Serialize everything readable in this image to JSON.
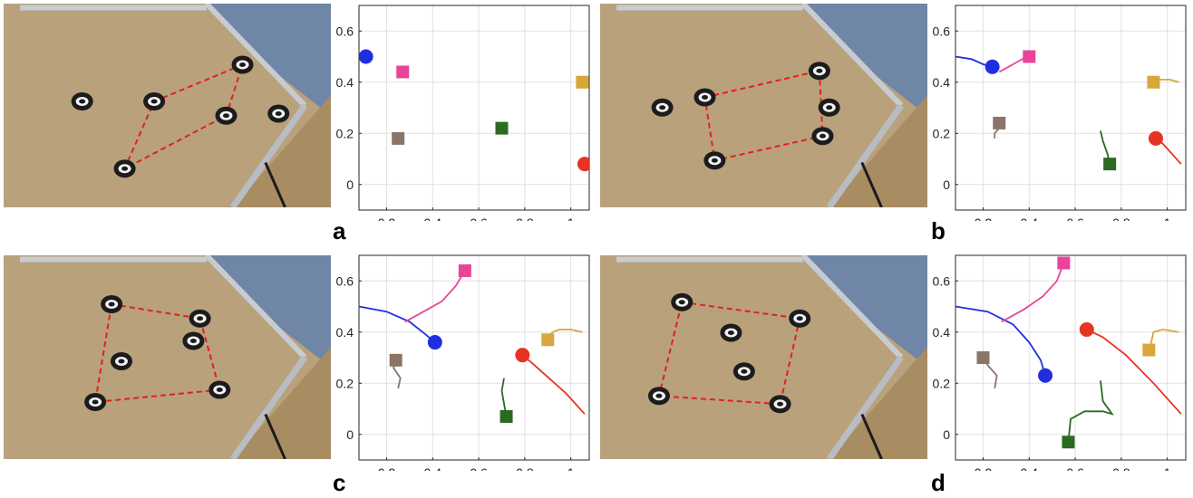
{
  "panels": [
    {
      "label": "a"
    },
    {
      "label": "b"
    },
    {
      "label": "c"
    },
    {
      "label": "d"
    }
  ],
  "photos": [
    {
      "description": "overhead photo of robot arena",
      "robots": [
        [
          0.24,
          0.48
        ],
        [
          0.46,
          0.48
        ],
        [
          0.73,
          0.3
        ],
        [
          0.68,
          0.55
        ],
        [
          0.37,
          0.81
        ],
        [
          0.84,
          0.54
        ]
      ],
      "formation": [
        [
          0.46,
          0.48
        ],
        [
          0.73,
          0.3
        ],
        [
          0.68,
          0.55
        ],
        [
          0.37,
          0.81
        ]
      ]
    },
    {
      "description": "overhead photo of robot arena",
      "robots": [
        [
          0.19,
          0.51
        ],
        [
          0.32,
          0.46
        ],
        [
          0.67,
          0.33
        ],
        [
          0.7,
          0.51
        ],
        [
          0.68,
          0.65
        ],
        [
          0.35,
          0.77
        ]
      ],
      "formation": [
        [
          0.32,
          0.46
        ],
        [
          0.67,
          0.33
        ],
        [
          0.68,
          0.65
        ],
        [
          0.35,
          0.77
        ]
      ]
    },
    {
      "description": "overhead photo of robot arena",
      "robots": [
        [
          0.33,
          0.24
        ],
        [
          0.6,
          0.31
        ],
        [
          0.58,
          0.42
        ],
        [
          0.36,
          0.52
        ],
        [
          0.28,
          0.72
        ],
        [
          0.66,
          0.66
        ]
      ],
      "formation": [
        [
          0.33,
          0.24
        ],
        [
          0.6,
          0.31
        ],
        [
          0.66,
          0.66
        ],
        [
          0.28,
          0.72
        ]
      ]
    },
    {
      "description": "overhead photo of robot arena",
      "robots": [
        [
          0.25,
          0.23
        ],
        [
          0.61,
          0.31
        ],
        [
          0.4,
          0.38
        ],
        [
          0.44,
          0.57
        ],
        [
          0.18,
          0.69
        ],
        [
          0.55,
          0.73
        ]
      ],
      "formation": [
        [
          0.25,
          0.23
        ],
        [
          0.61,
          0.31
        ],
        [
          0.55,
          0.73
        ],
        [
          0.18,
          0.69
        ]
      ]
    }
  ],
  "chart_data": [
    {
      "type": "scatter",
      "panel": "a",
      "xlim": [
        0.08,
        1.08
      ],
      "ylim": [
        -0.1,
        0.7
      ],
      "xticks": [
        0.2,
        0.4,
        0.6,
        0.8,
        1
      ],
      "yticks": [
        0,
        0.2,
        0.4,
        0.6
      ],
      "xtick_labels": [
        "0.2",
        "0.4",
        "0.6",
        "0.8",
        "1"
      ],
      "ytick_labels": [
        "0",
        "0.2",
        "0.4",
        "0.6"
      ],
      "grid": true,
      "points": [
        {
          "shape": "circle",
          "color": "#1f2fe0",
          "x": 0.11,
          "y": 0.5
        },
        {
          "shape": "circle",
          "color": "#e63322",
          "x": 1.06,
          "y": 0.08
        },
        {
          "shape": "square",
          "color": "#e8449a",
          "x": 0.27,
          "y": 0.44
        },
        {
          "shape": "square",
          "color": "#d8a73a",
          "x": 1.05,
          "y": 0.4
        },
        {
          "shape": "square",
          "color": "#2a6b21",
          "x": 0.7,
          "y": 0.22
        },
        {
          "shape": "square",
          "color": "#8a7669",
          "x": 0.25,
          "y": 0.18
        }
      ],
      "trails": []
    },
    {
      "type": "scatter",
      "panel": "b",
      "xlim": [
        0.08,
        1.08
      ],
      "ylim": [
        -0.1,
        0.7
      ],
      "xticks": [
        0.2,
        0.4,
        0.6,
        0.8,
        1
      ],
      "yticks": [
        0,
        0.2,
        0.4,
        0.6
      ],
      "xtick_labels": [
        "0.2",
        "0.4",
        "0.6",
        "0.8",
        "1"
      ],
      "ytick_labels": [
        "0",
        "0.2",
        "0.4",
        "0.6"
      ],
      "grid": true,
      "points": [
        {
          "shape": "circle",
          "color": "#1f2fe0",
          "x": 0.24,
          "y": 0.46
        },
        {
          "shape": "circle",
          "color": "#e63322",
          "x": 0.95,
          "y": 0.18
        },
        {
          "shape": "square",
          "color": "#e8449a",
          "x": 0.4,
          "y": 0.5
        },
        {
          "shape": "square",
          "color": "#d8a73a",
          "x": 0.94,
          "y": 0.4
        },
        {
          "shape": "square",
          "color": "#2a6b21",
          "x": 0.75,
          "y": 0.08
        },
        {
          "shape": "square",
          "color": "#8a7669",
          "x": 0.27,
          "y": 0.24
        }
      ],
      "trails": [
        {
          "color": "#1f2fe0",
          "path": [
            [
              0.08,
              0.5
            ],
            [
              0.15,
              0.49
            ],
            [
              0.2,
              0.47
            ],
            [
              0.24,
              0.46
            ]
          ]
        },
        {
          "color": "#e8449a",
          "path": [
            [
              0.27,
              0.44
            ],
            [
              0.33,
              0.47
            ],
            [
              0.37,
              0.49
            ],
            [
              0.4,
              0.5
            ]
          ]
        },
        {
          "color": "#e63322",
          "path": [
            [
              1.06,
              0.08
            ],
            [
              1.02,
              0.12
            ],
            [
              0.98,
              0.16
            ],
            [
              0.95,
              0.18
            ]
          ]
        },
        {
          "color": "#d8a73a",
          "path": [
            [
              1.05,
              0.4
            ],
            [
              1.01,
              0.41
            ],
            [
              0.97,
              0.41
            ],
            [
              0.94,
              0.4
            ]
          ]
        },
        {
          "color": "#2a6b21",
          "path": [
            [
              0.71,
              0.21
            ],
            [
              0.72,
              0.17
            ],
            [
              0.74,
              0.12
            ],
            [
              0.75,
              0.08
            ]
          ]
        },
        {
          "color": "#8a7669",
          "path": [
            [
              0.25,
              0.18
            ],
            [
              0.25,
              0.2
            ],
            [
              0.27,
              0.22
            ],
            [
              0.27,
              0.24
            ]
          ]
        }
      ]
    },
    {
      "type": "scatter",
      "panel": "c",
      "xlim": [
        0.08,
        1.08
      ],
      "ylim": [
        -0.1,
        0.7
      ],
      "xticks": [
        0.2,
        0.4,
        0.6,
        0.8,
        1
      ],
      "yticks": [
        0,
        0.2,
        0.4,
        0.6
      ],
      "xtick_labels": [
        "0.2",
        "0.4",
        "0.6",
        "0.8",
        "1"
      ],
      "ytick_labels": [
        "0",
        "0.2",
        "0.4",
        "0.6"
      ],
      "grid": true,
      "points": [
        {
          "shape": "circle",
          "color": "#1f2fe0",
          "x": 0.41,
          "y": 0.36
        },
        {
          "shape": "circle",
          "color": "#e63322",
          "x": 0.79,
          "y": 0.31
        },
        {
          "shape": "square",
          "color": "#e8449a",
          "x": 0.54,
          "y": 0.64
        },
        {
          "shape": "square",
          "color": "#d8a73a",
          "x": 0.9,
          "y": 0.37
        },
        {
          "shape": "square",
          "color": "#2a6b21",
          "x": 0.72,
          "y": 0.07
        },
        {
          "shape": "square",
          "color": "#8a7669",
          "x": 0.24,
          "y": 0.29
        }
      ],
      "trails": [
        {
          "color": "#1f2fe0",
          "path": [
            [
              0.08,
              0.5
            ],
            [
              0.2,
              0.48
            ],
            [
              0.3,
              0.44
            ],
            [
              0.37,
              0.39
            ],
            [
              0.41,
              0.36
            ]
          ]
        },
        {
          "color": "#e8449a",
          "path": [
            [
              0.28,
              0.44
            ],
            [
              0.36,
              0.48
            ],
            [
              0.44,
              0.52
            ],
            [
              0.5,
              0.58
            ],
            [
              0.54,
              0.64
            ]
          ]
        },
        {
          "color": "#e63322",
          "path": [
            [
              1.06,
              0.08
            ],
            [
              0.98,
              0.16
            ],
            [
              0.88,
              0.24
            ],
            [
              0.83,
              0.28
            ],
            [
              0.79,
              0.31
            ]
          ]
        },
        {
          "color": "#d8a73a",
          "path": [
            [
              1.05,
              0.4
            ],
            [
              1.0,
              0.41
            ],
            [
              0.95,
              0.41
            ],
            [
              0.92,
              0.4
            ],
            [
              0.9,
              0.37
            ]
          ]
        },
        {
          "color": "#2a6b21",
          "path": [
            [
              0.71,
              0.22
            ],
            [
              0.7,
              0.17
            ],
            [
              0.71,
              0.12
            ],
            [
              0.72,
              0.07
            ]
          ]
        },
        {
          "color": "#8a7669",
          "path": [
            [
              0.25,
              0.18
            ],
            [
              0.26,
              0.22
            ],
            [
              0.23,
              0.26
            ],
            [
              0.24,
              0.29
            ]
          ]
        }
      ]
    },
    {
      "type": "scatter",
      "panel": "d",
      "xlim": [
        0.08,
        1.08
      ],
      "ylim": [
        -0.1,
        0.7
      ],
      "xticks": [
        0.2,
        0.4,
        0.6,
        0.8,
        1
      ],
      "yticks": [
        0,
        0.2,
        0.4,
        0.6
      ],
      "xtick_labels": [
        "0.2",
        "0.4",
        "0.6",
        "0.8",
        "1"
      ],
      "ytick_labels": [
        "0",
        "0.2",
        "0.4",
        "0.6"
      ],
      "grid": true,
      "points": [
        {
          "shape": "circle",
          "color": "#1f2fe0",
          "x": 0.47,
          "y": 0.23
        },
        {
          "shape": "circle",
          "color": "#e63322",
          "x": 0.65,
          "y": 0.41
        },
        {
          "shape": "square",
          "color": "#e8449a",
          "x": 0.55,
          "y": 0.67
        },
        {
          "shape": "square",
          "color": "#d8a73a",
          "x": 0.92,
          "y": 0.33
        },
        {
          "shape": "square",
          "color": "#2a6b21",
          "x": 0.57,
          "y": -0.03
        },
        {
          "shape": "square",
          "color": "#8a7669",
          "x": 0.2,
          "y": 0.3
        }
      ],
      "trails": [
        {
          "color": "#1f2fe0",
          "path": [
            [
              0.08,
              0.5
            ],
            [
              0.22,
              0.48
            ],
            [
              0.33,
              0.43
            ],
            [
              0.4,
              0.36
            ],
            [
              0.45,
              0.29
            ],
            [
              0.47,
              0.23
            ]
          ]
        },
        {
          "color": "#e8449a",
          "path": [
            [
              0.28,
              0.44
            ],
            [
              0.38,
              0.49
            ],
            [
              0.46,
              0.54
            ],
            [
              0.52,
              0.6
            ],
            [
              0.55,
              0.67
            ]
          ]
        },
        {
          "color": "#e63322",
          "path": [
            [
              1.06,
              0.08
            ],
            [
              0.94,
              0.2
            ],
            [
              0.82,
              0.31
            ],
            [
              0.72,
              0.38
            ],
            [
              0.65,
              0.41
            ]
          ]
        },
        {
          "color": "#d8a73a",
          "path": [
            [
              1.05,
              0.4
            ],
            [
              0.98,
              0.41
            ],
            [
              0.94,
              0.4
            ],
            [
              0.93,
              0.36
            ],
            [
              0.92,
              0.33
            ]
          ]
        },
        {
          "color": "#2a6b21",
          "path": [
            [
              0.71,
              0.21
            ],
            [
              0.72,
              0.13
            ],
            [
              0.76,
              0.08
            ],
            [
              0.72,
              0.09
            ],
            [
              0.64,
              0.09
            ],
            [
              0.58,
              0.06
            ],
            [
              0.57,
              -0.03
            ]
          ]
        },
        {
          "color": "#8a7669",
          "path": [
            [
              0.25,
              0.18
            ],
            [
              0.26,
              0.23
            ],
            [
              0.22,
              0.27
            ],
            [
              0.2,
              0.3
            ]
          ]
        }
      ]
    }
  ]
}
